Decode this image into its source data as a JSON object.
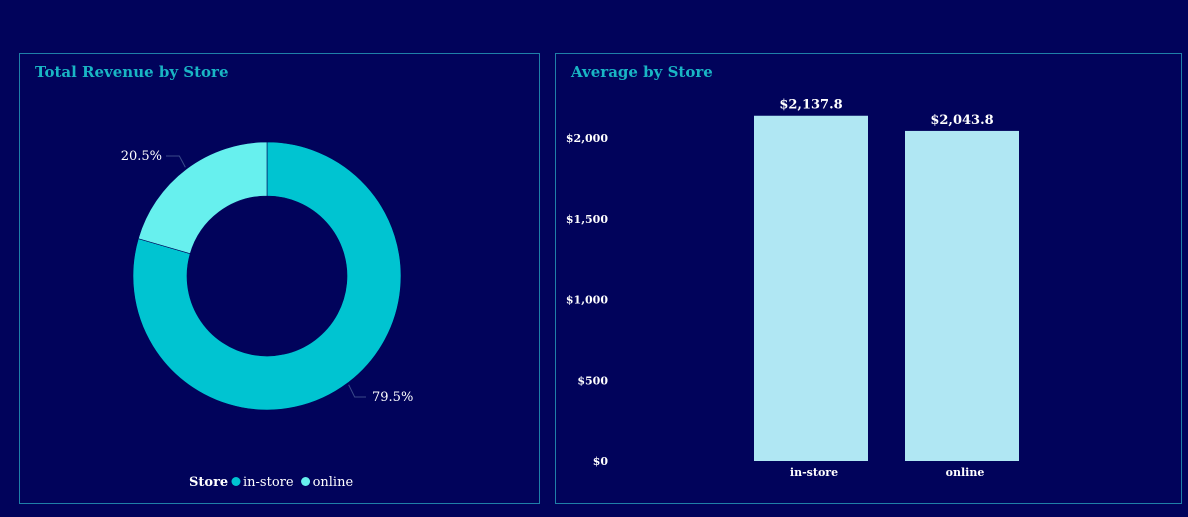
{
  "colors": {
    "background": "#01035b",
    "border": "#1f7fa8",
    "title": "#19b5c4",
    "in_store": "#00c4d1",
    "online": "#67f0ee",
    "bar": "#b0e7f3",
    "text": "#ffffff"
  },
  "left_panel": {
    "title": "Total Revenue by Store"
  },
  "right_panel": {
    "title": "Average by Store"
  },
  "chart_data": [
    {
      "type": "pie",
      "title": "Total Revenue by Store",
      "donut": true,
      "legend_title": "Store",
      "legend_position": "bottom",
      "slices": [
        {
          "label": "in-store",
          "value": 79.5,
          "display": "79.5%",
          "color": "#00c4d1"
        },
        {
          "label": "online",
          "value": 20.5,
          "display": "20.5%",
          "color": "#67f0ee"
        }
      ]
    },
    {
      "type": "bar",
      "title": "Average by Store",
      "categories": [
        "in-store",
        "online"
      ],
      "values": [
        2137.8,
        2043.8
      ],
      "value_labels": [
        "$2,137.8",
        "$2,043.8"
      ],
      "ylim": [
        0,
        2000
      ],
      "yticks": [
        0,
        500,
        1000,
        1500,
        2000
      ],
      "ytick_labels": [
        "$0",
        "$500",
        "$1,000",
        "$1,500",
        "$2,000"
      ],
      "grid": false
    }
  ]
}
